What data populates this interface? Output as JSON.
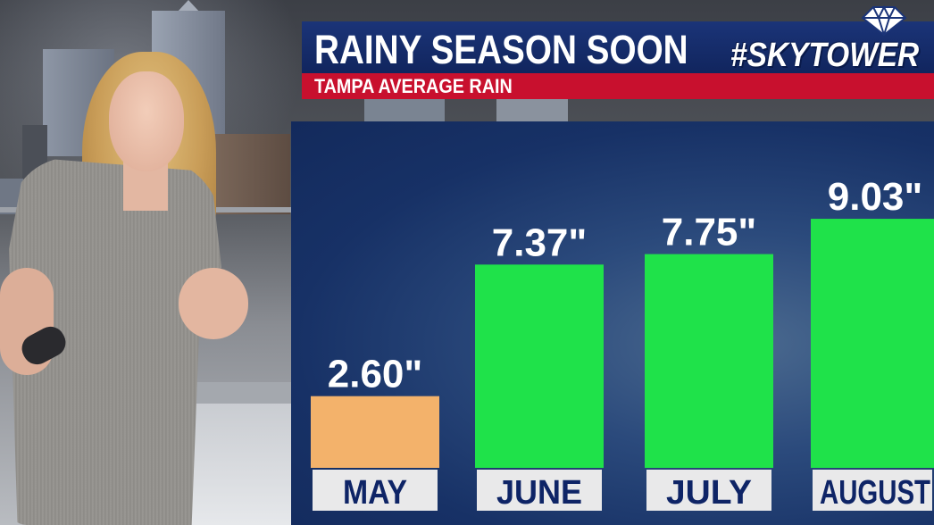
{
  "header": {
    "title": "RAINY SEASON SOON",
    "subtitle": "TAMPA AVERAGE RAIN",
    "brand": "#SKYTOWER"
  },
  "colors": {
    "title_bar": "#10245c",
    "subtitle_bar": "#c8102e",
    "chart_background": "#173166",
    "bar_highlight": "#f3b26b",
    "bar_default": "#1fe24a",
    "label_plate": "#e9e9ea",
    "label_text": "#0e2466"
  },
  "chart_data": {
    "type": "bar",
    "title": "TAMPA AVERAGE RAIN",
    "categories": [
      "MAY",
      "JUNE",
      "JULY",
      "AUGUST"
    ],
    "values": [
      2.6,
      7.37,
      7.75,
      9.03
    ],
    "value_labels": [
      "2.60\"",
      "7.37\"",
      "7.75\"",
      "9.03\""
    ],
    "bar_colors": [
      "#f3b26b",
      "#1fe24a",
      "#1fe24a",
      "#1fe24a"
    ],
    "ylim": [
      0,
      10.1
    ],
    "grid": false,
    "legend": "none"
  }
}
